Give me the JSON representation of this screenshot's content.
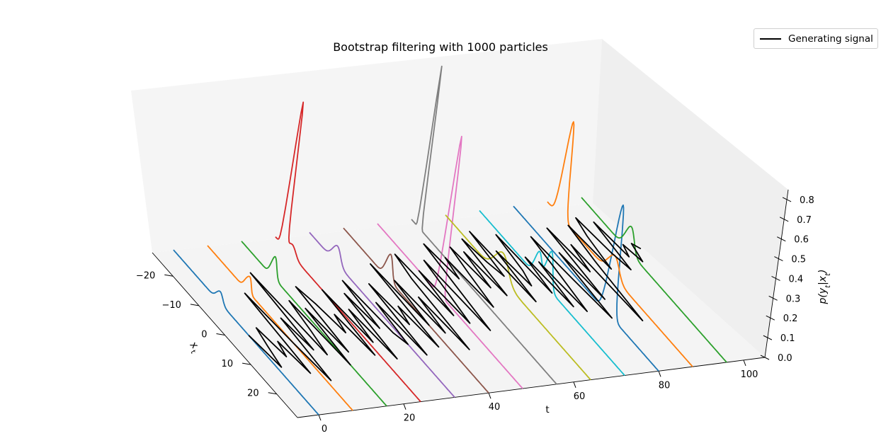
{
  "chart_data": {
    "type": "line",
    "projection": "3d",
    "title": "Bootstrap filtering with 1000 particles",
    "xlabel": "t",
    "ylabel": "x_t",
    "zlabel": "p(y_t|x_t)",
    "xlim": [
      -5,
      105
    ],
    "ylim": [
      -28,
      28
    ],
    "zlim": [
      0,
      0.85
    ],
    "x_ticks": [
      0,
      20,
      40,
      60,
      80,
      100
    ],
    "y_ticks": [
      -20,
      -10,
      0,
      10,
      20
    ],
    "z_ticks": [
      "0.0",
      "0.1",
      "0.2",
      "0.3",
      "0.4",
      "0.5",
      "0.6",
      "0.7",
      "0.8"
    ],
    "legend": {
      "placement": "top-right",
      "entries": [
        "Generating signal"
      ]
    },
    "colors": [
      "#1f77b4",
      "#ff7f0e",
      "#2ca02c",
      "#d62728",
      "#9467bd",
      "#8c564b",
      "#e377c2",
      "#7f7f7f",
      "#bcbd22",
      "#17becf"
    ],
    "densities": [
      {
        "t": 0,
        "peaks": [
          {
            "mu": -10.5,
            "sigma": 1.2,
            "height": 0.05
          }
        ]
      },
      {
        "t": 8,
        "peaks": [
          {
            "mu": -13.0,
            "sigma": 1.0,
            "height": 0.06
          },
          {
            "mu": -12.0,
            "sigma": 0.6,
            "height": 0.03
          }
        ]
      },
      {
        "t": 16,
        "peaks": [
          {
            "mu": -16.0,
            "sigma": 1.0,
            "height": 0.1
          }
        ]
      },
      {
        "t": 24,
        "peaks": [
          {
            "mu": -25.0,
            "sigma": 0.6,
            "height": 0.72
          },
          {
            "mu": -22.0,
            "sigma": 1.5,
            "height": 0.05
          }
        ]
      },
      {
        "t": 32,
        "peaks": [
          {
            "mu": -18.0,
            "sigma": 1.5,
            "height": 0.08
          }
        ]
      },
      {
        "t": 40,
        "peaks": [
          {
            "mu": -11.0,
            "sigma": 1.2,
            "height": 0.12
          }
        ]
      },
      {
        "t": 48,
        "peaks": [
          {
            "mu": -4.0,
            "sigma": 0.7,
            "height": 0.8
          }
        ]
      },
      {
        "t": 56,
        "peaks": [
          {
            "mu": -25.0,
            "sigma": 0.35,
            "height": 0.82
          }
        ]
      },
      {
        "t": 64,
        "peaks": [
          {
            "mu": -7.0,
            "sigma": 2.5,
            "height": 0.12
          }
        ]
      },
      {
        "t": 72,
        "peaks": [
          {
            "mu": -2.0,
            "sigma": 1.2,
            "height": 0.18
          },
          {
            "mu": -6.0,
            "sigma": 1.2,
            "height": 0.12
          }
        ]
      },
      {
        "t": 80,
        "peaks": [
          {
            "mu": 8.5,
            "sigma": 1.3,
            "height": 0.55
          }
        ]
      },
      {
        "t": 88,
        "peaks": [
          {
            "mu": -23.0,
            "sigma": 1.1,
            "height": 0.48
          },
          {
            "mu": -3.0,
            "sigma": 2.0,
            "height": 0.1
          }
        ]
      },
      {
        "t": 96,
        "peaks": [
          {
            "mu": -10.0,
            "sigma": 1.6,
            "height": 0.12
          }
        ]
      }
    ],
    "generating_signal": {
      "name": "Generating signal",
      "color": "#000000",
      "t": [
        0,
        1,
        2,
        3,
        4,
        5,
        6,
        7,
        8,
        9,
        10,
        11,
        12,
        13,
        14,
        15,
        16,
        17,
        18,
        19,
        20,
        21,
        22,
        23,
        24,
        25,
        26,
        27,
        28,
        29,
        30,
        31,
        32,
        33,
        34,
        35,
        36,
        37,
        38,
        39,
        40,
        41,
        42,
        43,
        44,
        45,
        46,
        47,
        48,
        49,
        50,
        51,
        52,
        53,
        54,
        55,
        56,
        57,
        58,
        59,
        60,
        61,
        62,
        63,
        64,
        65,
        66,
        67,
        68,
        69,
        70,
        71,
        72,
        73,
        74,
        75,
        76,
        77,
        78,
        79,
        80,
        81,
        82,
        83,
        84,
        85,
        86,
        87,
        88,
        89,
        90,
        91,
        92,
        93,
        94,
        95,
        96,
        97,
        98,
        99
      ],
      "x": [
        1,
        12,
        5,
        -1,
        9,
        4,
        15,
        -12,
        5,
        18,
        -3,
        8,
        -18,
        10,
        2,
        -8,
        14,
        -5,
        10,
        -12,
        -6,
        4,
        -2,
        12,
        -10,
        8,
        -3,
        14,
        -8,
        4,
        -12,
        6,
        10,
        -4,
        14,
        -10,
        4,
        -2,
        12,
        -16,
        5,
        -10,
        8,
        -4,
        14,
        -10,
        -18,
        3,
        -12,
        6,
        -4,
        -15,
        9,
        -6,
        -20,
        -8,
        -15,
        2,
        -9,
        -18,
        -4,
        -16,
        -1,
        -20,
        -12,
        -7,
        -22,
        2,
        -15,
        -3,
        -8,
        -20,
        0,
        -12,
        5,
        -10,
        7,
        -5,
        -18,
        -3,
        10,
        -12,
        4,
        -20,
        -5,
        -14,
        12,
        -8,
        -20,
        -5,
        -16,
        -22,
        -10,
        -4,
        -20,
        -8,
        -12,
        -6,
        -12,
        -10
      ]
    }
  }
}
